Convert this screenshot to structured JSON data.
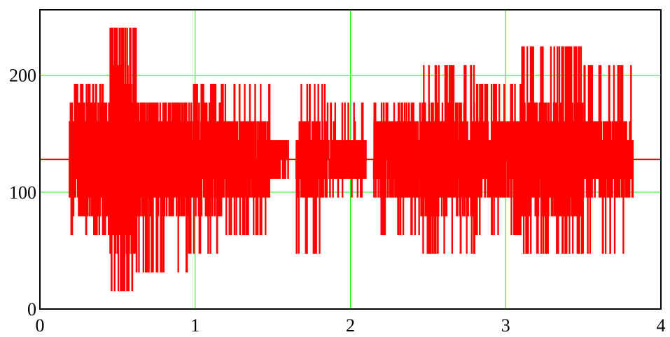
{
  "chart_data": {
    "type": "line",
    "title": "",
    "xlabel": "",
    "ylabel": "",
    "xlim": [
      0,
      4
    ],
    "ylim": [
      0,
      256
    ],
    "x_ticks": [
      0,
      1,
      2,
      3,
      4
    ],
    "y_ticks": [
      0,
      100,
      200
    ],
    "x_tick_labels": [
      "0",
      "1",
      "2",
      "3",
      "4"
    ],
    "y_tick_labels": [
      "0",
      "100",
      "200"
    ],
    "grid": true,
    "legend": "none",
    "colors": {
      "series": "#ff0000",
      "grid": "#00ff00",
      "frame": "#000000"
    },
    "series": [
      {
        "name": "",
        "baseline": 128,
        "segments": [
          {
            "x0": 0.0,
            "x1": 0.002,
            "center": 128,
            "amplitude": 80,
            "peak_max": 128,
            "peak_min": 48,
            "density": 1
          },
          {
            "x0": 0.19,
            "x1": 0.45,
            "center": 128,
            "amplitude": 50,
            "peak_max": 192,
            "peak_min": 64,
            "density": 5
          },
          {
            "x0": 0.45,
            "x1": 0.62,
            "center": 128,
            "amplitude": 80,
            "peak_max": 240,
            "peak_min": 16,
            "density": 7
          },
          {
            "x0": 0.62,
            "x1": 0.95,
            "center": 128,
            "amplitude": 50,
            "peak_max": 176,
            "peak_min": 32,
            "density": 5
          },
          {
            "x0": 0.95,
            "x1": 1.18,
            "center": 128,
            "amplitude": 45,
            "peak_max": 192,
            "peak_min": 48,
            "density": 4
          },
          {
            "x0": 1.18,
            "x1": 1.48,
            "center": 128,
            "amplitude": 40,
            "peak_max": 192,
            "peak_min": 64,
            "density": 5
          },
          {
            "x0": 1.48,
            "x1": 1.6,
            "center": 128,
            "amplitude": 15,
            "peak_max": 144,
            "peak_min": 112,
            "density": 3
          },
          {
            "x0": 1.65,
            "x1": 1.85,
            "center": 128,
            "amplitude": 35,
            "peak_max": 192,
            "peak_min": 48,
            "density": 4
          },
          {
            "x0": 1.85,
            "x1": 2.1,
            "center": 128,
            "amplitude": 25,
            "peak_max": 176,
            "peak_min": 96,
            "density": 3
          },
          {
            "x0": 2.15,
            "x1": 2.45,
            "center": 128,
            "amplitude": 35,
            "peak_max": 176,
            "peak_min": 64,
            "density": 4
          },
          {
            "x0": 2.45,
            "x1": 2.8,
            "center": 128,
            "amplitude": 45,
            "peak_max": 208,
            "peak_min": 48,
            "density": 5
          },
          {
            "x0": 2.8,
            "x1": 3.1,
            "center": 128,
            "amplitude": 40,
            "peak_max": 192,
            "peak_min": 64,
            "density": 4
          },
          {
            "x0": 3.1,
            "x1": 3.5,
            "center": 128,
            "amplitude": 50,
            "peak_max": 224,
            "peak_min": 48,
            "density": 6
          },
          {
            "x0": 3.5,
            "x1": 3.82,
            "center": 128,
            "amplitude": 35,
            "peak_max": 208,
            "peak_min": 48,
            "density": 4
          }
        ]
      }
    ]
  }
}
